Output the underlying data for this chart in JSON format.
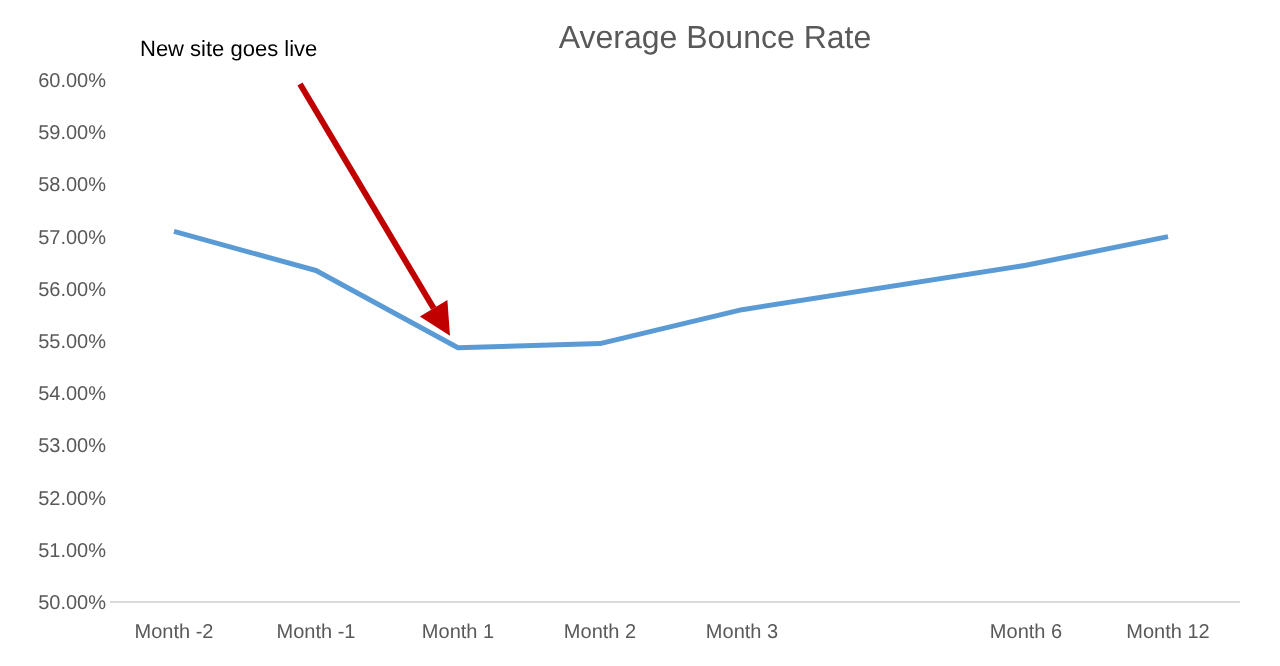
{
  "chart_data": {
    "type": "line",
    "title": "Average Bounce Rate",
    "categories": [
      "Month -2",
      "Month -1",
      "Month 1",
      "Month 2",
      "Month 3",
      null,
      "Month 6",
      "Month 12"
    ],
    "series": [
      {
        "color": "#5b9bd5",
        "values": [
          57.1,
          56.35,
          54.87,
          54.95,
          55.6,
          null,
          56.45,
          57.0
        ]
      }
    ],
    "ylim": [
      50,
      60
    ],
    "yticks": [
      {
        "value": 50,
        "label": "50.00%"
      },
      {
        "value": 51,
        "label": "51.00%"
      },
      {
        "value": 52,
        "label": "52.00%"
      },
      {
        "value": 53,
        "label": "53.00%"
      },
      {
        "value": 54,
        "label": "54.00%"
      },
      {
        "value": 55,
        "label": "55.00%"
      },
      {
        "value": 56,
        "label": "56.00%"
      },
      {
        "value": 57,
        "label": "57.00%"
      },
      {
        "value": 58,
        "label": "58.00%"
      },
      {
        "value": 59,
        "label": "59.00%"
      },
      {
        "value": 60,
        "label": "60.00%"
      }
    ],
    "annotations": [
      "New site goes live"
    ],
    "grid": false,
    "marker": "none",
    "line_style": "solid"
  }
}
